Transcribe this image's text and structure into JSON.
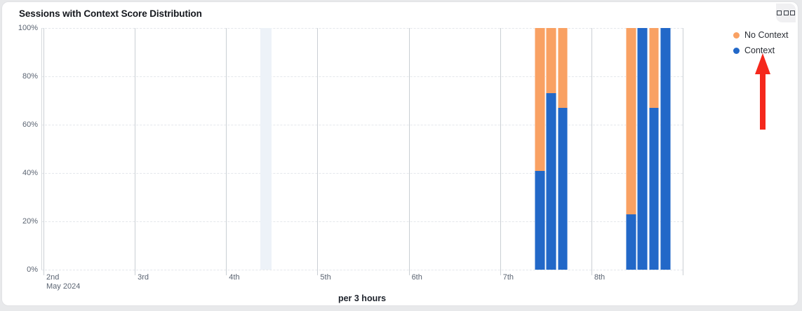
{
  "card": {
    "title": "Sessions with Context Score Distribution",
    "menu_button": "widget-options"
  },
  "chart_data": {
    "type": "bar",
    "stacked": true,
    "percent_axis": true,
    "title": "Sessions with Context Score Distribution",
    "xlabel": "per 3 hours",
    "ylabel": "",
    "ylim": [
      0,
      100
    ],
    "y_ticks": [
      "0%",
      "20%",
      "40%",
      "60%",
      "80%",
      "100%"
    ],
    "x_ticks": [
      "2nd",
      "3rd",
      "4th",
      "5th",
      "6th",
      "7th",
      "8th"
    ],
    "x_axis_month_label": "May 2024",
    "grid": true,
    "legend_position": "top-right",
    "slots_per_day": 8,
    "slot_unit_hours": 3,
    "series": [
      {
        "name": "No Context",
        "key": "no_context",
        "color": "#F9A163"
      },
      {
        "name": "Context",
        "key": "context",
        "color": "#2268C8"
      }
    ],
    "bars": [
      {
        "day": "7th",
        "day_index": 5,
        "slot_of_day": 3,
        "context": 41,
        "no_context": 59
      },
      {
        "day": "7th",
        "day_index": 5,
        "slot_of_day": 4,
        "context": 73,
        "no_context": 27
      },
      {
        "day": "7th",
        "day_index": 5,
        "slot_of_day": 5,
        "context": 67,
        "no_context": 33
      },
      {
        "day": "8th",
        "day_index": 6,
        "slot_of_day": 3,
        "context": 23,
        "no_context": 77
      },
      {
        "day": "8th",
        "day_index": 6,
        "slot_of_day": 4,
        "context": 100,
        "no_context": 0
      },
      {
        "day": "8th",
        "day_index": 6,
        "slot_of_day": 5,
        "context": 67,
        "no_context": 33
      },
      {
        "day": "8th",
        "day_index": 6,
        "slot_of_day": 6,
        "context": 100,
        "no_context": 0
      }
    ],
    "highlight_band": {
      "day": "4th",
      "day_index": 2,
      "slot_of_day": 3,
      "color": "#EDF2F8"
    }
  },
  "annotation": {
    "type": "red-arrow-up",
    "color": "#F5281C",
    "points_to": "Context legend item"
  }
}
